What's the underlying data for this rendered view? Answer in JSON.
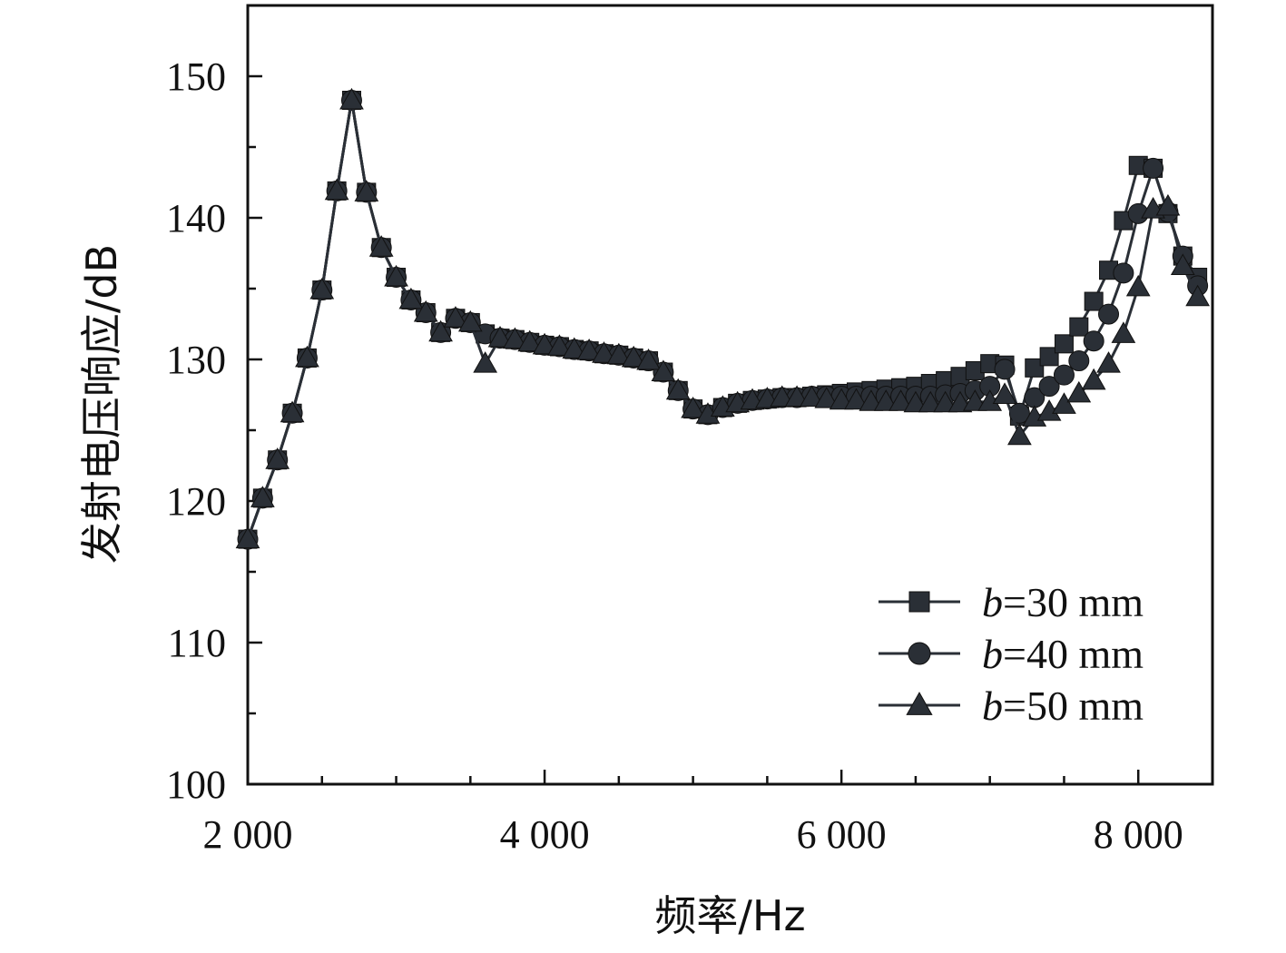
{
  "chart_data": {
    "type": "line",
    "title": "",
    "xlabel": "频率/Hz",
    "ylabel": "发射电压响应/dB",
    "xlim": [
      2000,
      8500
    ],
    "ylim": [
      100,
      155
    ],
    "xticks": [
      2000,
      4000,
      6000,
      8000
    ],
    "xtick_labels": [
      "2 000",
      "4 000",
      "6 000",
      "8 000"
    ],
    "yticks": [
      100,
      110,
      120,
      130,
      140,
      150
    ],
    "ytick_labels": [
      "100",
      "110",
      "120",
      "130",
      "140",
      "150"
    ],
    "grid": false,
    "legend_position": "bottom-right",
    "series": [
      {
        "name": "b=30 mm",
        "legend_var": "b",
        "legend_rest": "=30 mm",
        "marker": "square",
        "color": "#2a2f36",
        "x": [
          2000,
          2100,
          2200,
          2300,
          2400,
          2500,
          2600,
          2700,
          2800,
          2900,
          3000,
          3100,
          3200,
          3300,
          3400,
          3500,
          3600,
          3700,
          3800,
          3900,
          4000,
          4100,
          4200,
          4300,
          4400,
          4500,
          4600,
          4700,
          4800,
          4900,
          5000,
          5100,
          5200,
          5300,
          5400,
          5500,
          5600,
          5700,
          5800,
          5900,
          6000,
          6100,
          6200,
          6300,
          6400,
          6500,
          6600,
          6700,
          6800,
          6900,
          7000,
          7100,
          7200,
          7300,
          7400,
          7500,
          7600,
          7700,
          7800,
          7900,
          8000,
          8100,
          8200,
          8300,
          8400
        ],
        "y": [
          117.3,
          120.2,
          122.9,
          126.2,
          130.1,
          134.9,
          141.9,
          148.3,
          141.8,
          137.9,
          135.8,
          134.2,
          133.3,
          131.9,
          132.9,
          132.6,
          131.8,
          131.5,
          131.4,
          131.2,
          131.0,
          130.9,
          130.7,
          130.6,
          130.4,
          130.3,
          130.1,
          129.9,
          129.1,
          127.8,
          126.5,
          126.1,
          126.6,
          126.9,
          127.1,
          127.2,
          127.3,
          127.3,
          127.4,
          127.5,
          127.6,
          127.7,
          127.8,
          127.9,
          128.0,
          128.1,
          128.3,
          128.5,
          128.8,
          129.2,
          129.7,
          129.6,
          126.0,
          129.4,
          130.2,
          131.1,
          132.3,
          134.1,
          136.3,
          139.8,
          143.7,
          143.5,
          140.3,
          137.3,
          135.8
        ]
      },
      {
        "name": "b=40 mm",
        "legend_var": "b",
        "legend_rest": "=40 mm",
        "marker": "circle",
        "color": "#2a2f36",
        "x": [
          2000,
          2100,
          2200,
          2300,
          2400,
          2500,
          2600,
          2700,
          2800,
          2900,
          3000,
          3100,
          3200,
          3300,
          3400,
          3500,
          3600,
          3700,
          3800,
          3900,
          4000,
          4100,
          4200,
          4300,
          4400,
          4500,
          4600,
          4700,
          4800,
          4900,
          5000,
          5100,
          5200,
          5300,
          5400,
          5500,
          5600,
          5700,
          5800,
          5900,
          6000,
          6100,
          6200,
          6300,
          6400,
          6500,
          6600,
          6700,
          6800,
          6900,
          7000,
          7100,
          7200,
          7300,
          7400,
          7500,
          7600,
          7700,
          7800,
          7900,
          8000,
          8100,
          8200,
          8300,
          8400
        ],
        "y": [
          117.3,
          120.2,
          122.9,
          126.2,
          130.1,
          134.9,
          141.9,
          148.3,
          141.8,
          137.9,
          135.8,
          134.2,
          133.3,
          131.9,
          132.9,
          132.6,
          131.8,
          131.5,
          131.4,
          131.2,
          131.0,
          130.9,
          130.7,
          130.6,
          130.4,
          130.3,
          130.1,
          129.9,
          129.1,
          127.8,
          126.5,
          126.1,
          126.6,
          126.9,
          127.1,
          127.2,
          127.3,
          127.3,
          127.4,
          127.4,
          127.4,
          127.4,
          127.4,
          127.4,
          127.4,
          127.4,
          127.4,
          127.5,
          127.6,
          127.8,
          128.1,
          129.3,
          126.2,
          127.3,
          128.1,
          128.9,
          129.9,
          131.3,
          133.2,
          136.1,
          140.3,
          143.5,
          140.4,
          137.3,
          135.2
        ]
      },
      {
        "name": "b=50 mm",
        "legend_var": "b",
        "legend_rest": "=50 mm",
        "marker": "triangle",
        "color": "#2a2f36",
        "x": [
          2000,
          2100,
          2200,
          2300,
          2400,
          2500,
          2600,
          2700,
          2800,
          2900,
          3000,
          3100,
          3200,
          3300,
          3400,
          3500,
          3600,
          3700,
          3800,
          3900,
          4000,
          4100,
          4200,
          4300,
          4400,
          4500,
          4600,
          4700,
          4800,
          4900,
          5000,
          5100,
          5200,
          5300,
          5400,
          5500,
          5600,
          5700,
          5800,
          5900,
          6000,
          6100,
          6200,
          6300,
          6400,
          6500,
          6600,
          6700,
          6800,
          6900,
          7000,
          7100,
          7200,
          7300,
          7400,
          7500,
          7600,
          7700,
          7800,
          7900,
          8000,
          8100,
          8200,
          8300,
          8400
        ],
        "y": [
          117.3,
          120.2,
          122.9,
          126.2,
          130.1,
          134.9,
          141.9,
          148.3,
          141.8,
          137.9,
          135.8,
          134.2,
          133.3,
          131.9,
          132.9,
          132.6,
          129.7,
          131.5,
          131.4,
          131.2,
          131.0,
          130.9,
          130.7,
          130.6,
          130.4,
          130.3,
          130.1,
          129.9,
          129.1,
          127.8,
          126.5,
          126.1,
          126.6,
          126.9,
          127.1,
          127.2,
          127.3,
          127.3,
          127.3,
          127.2,
          127.1,
          127.1,
          127.0,
          127.0,
          127.0,
          126.9,
          126.9,
          126.9,
          126.9,
          127.0,
          127.0,
          127.5,
          124.6,
          125.9,
          126.3,
          126.8,
          127.6,
          128.5,
          129.7,
          131.8,
          135.1,
          140.6,
          140.8,
          136.6,
          134.4
        ]
      }
    ]
  }
}
